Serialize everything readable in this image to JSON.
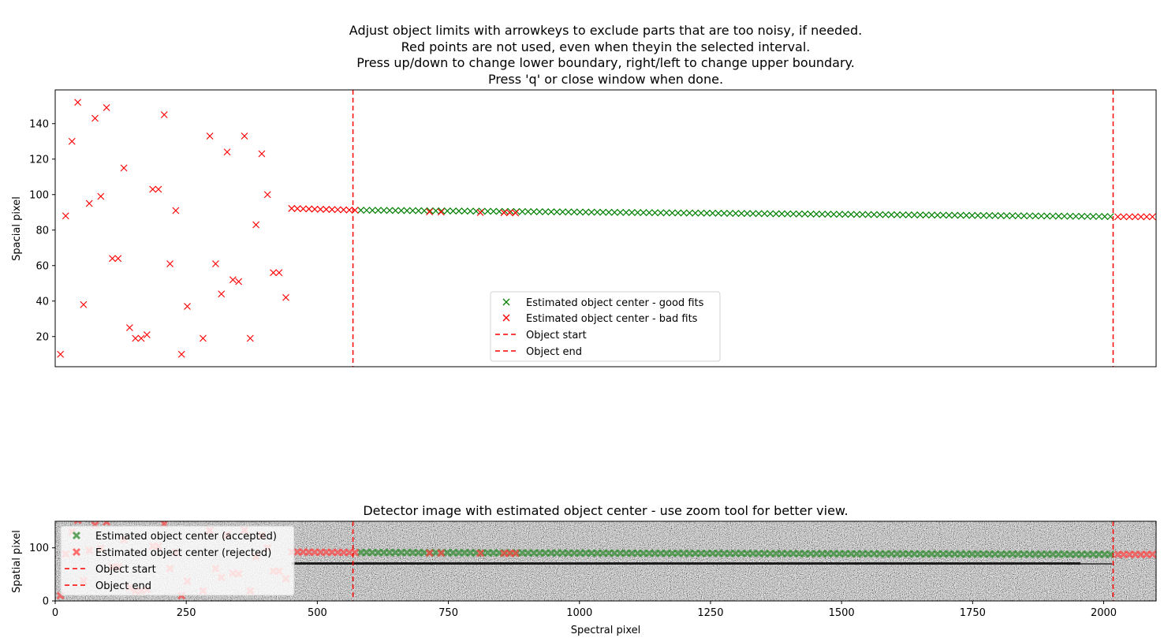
{
  "title_lines": [
    "Adjust object limits with arrowkeys to exclude parts that are too noisy, if needed.",
    "Red points are not used, even when theyin the selected interval.",
    "Press up/down to change lower boundary, right/left to change upper boundary.",
    "Press 'q' or close window when done."
  ],
  "colors": {
    "good": "#008000",
    "bad": "#ff0000",
    "limit": "#ff0000"
  },
  "chart_data": [
    {
      "type": "scatter",
      "ylabel": "Spacial pixel",
      "xlim": [
        0,
        2100
      ],
      "ylim": [
        3,
        159
      ],
      "yticks": [
        20,
        40,
        60,
        80,
        100,
        120,
        140
      ],
      "object_start": 568,
      "object_end": 2018,
      "legend": {
        "placement": "lower-center",
        "entries": [
          "Estimated object center - good fits",
          "Estimated object center - bad fits",
          "Object start",
          "Object end"
        ]
      },
      "bad_points": [
        [
          10,
          10
        ],
        [
          20,
          88
        ],
        [
          32,
          130
        ],
        [
          43,
          152
        ],
        [
          54,
          38
        ],
        [
          65,
          95
        ],
        [
          76,
          143
        ],
        [
          87,
          99
        ],
        [
          98,
          149
        ],
        [
          109,
          64
        ],
        [
          120,
          64
        ],
        [
          131,
          115
        ],
        [
          142,
          25
        ],
        [
          153,
          19
        ],
        [
          164,
          19
        ],
        [
          175,
          21
        ],
        [
          186,
          103
        ],
        [
          197,
          103
        ],
        [
          208,
          145
        ],
        [
          219,
          61
        ],
        [
          230,
          91
        ],
        [
          241,
          10
        ],
        [
          252,
          37
        ],
        [
          282,
          19
        ],
        [
          295,
          133
        ],
        [
          306,
          61
        ],
        [
          317,
          44
        ],
        [
          328,
          124
        ],
        [
          339,
          52
        ],
        [
          350,
          51
        ],
        [
          361,
          133
        ],
        [
          372,
          19
        ],
        [
          383,
          83
        ],
        [
          394,
          123
        ],
        [
          405,
          100
        ],
        [
          416,
          56
        ],
        [
          427,
          56
        ],
        [
          440,
          42
        ],
        [
          451,
          92.2
        ],
        [
          462,
          92.1
        ],
        [
          473,
          92.0
        ],
        [
          484,
          91.9
        ],
        [
          495,
          91.8
        ],
        [
          506,
          91.7
        ],
        [
          517,
          91.7
        ],
        [
          528,
          91.6
        ],
        [
          539,
          91.5
        ],
        [
          550,
          91.4
        ],
        [
          561,
          91.3
        ],
        [
          572,
          91.2
        ],
        [
          714,
          90.3
        ],
        [
          736,
          90.2
        ],
        [
          811,
          89.9
        ],
        [
          856,
          89.8
        ],
        [
          867,
          89.8
        ],
        [
          878,
          89.7
        ],
        [
          2027,
          87.5
        ],
        [
          2038,
          87.5
        ],
        [
          2049,
          87.5
        ],
        [
          2060,
          87.5
        ],
        [
          2071,
          87.5
        ],
        [
          2082,
          87.5
        ],
        [
          2093,
          87.5
        ]
      ],
      "good_range": {
        "from": 583,
        "to": 2016,
        "step": 11,
        "y_start": 91.2,
        "y_end": 87.6,
        "exclude": [
          714,
          736,
          811,
          856,
          867,
          878
        ]
      }
    },
    {
      "type": "heatmap",
      "title": "Detector image with estimated object center - use zoom tool for better view.",
      "xlabel": "Spectral pixel",
      "ylabel": "Spatial pixel",
      "xlim": [
        0,
        2100
      ],
      "ylim": [
        0,
        150
      ],
      "xticks": [
        0,
        250,
        500,
        750,
        1000,
        1250,
        1500,
        1750,
        2000
      ],
      "yticks": [
        0,
        100
      ],
      "object_start": 568,
      "object_end": 2018,
      "legend": {
        "placement": "upper-left",
        "entries": [
          "Estimated object center (accepted)",
          "Estimated object center (rejected)",
          "Object start",
          "Object end"
        ]
      }
    }
  ]
}
